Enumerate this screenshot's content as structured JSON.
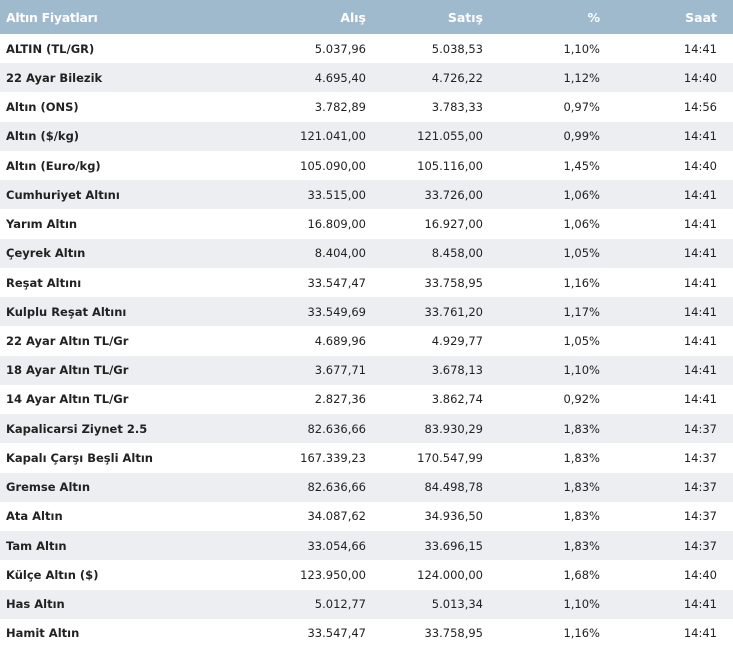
{
  "table": {
    "header": [
      "Altın Fiyatları",
      "Alış",
      "Satış",
      "%",
      "Saat"
    ],
    "rows": [
      [
        "ALTIN (TL/GR)",
        "5.037,96",
        "5.038,53",
        "1,10%",
        "14:41"
      ],
      [
        "22 Ayar Bilezik",
        "4.695,40",
        "4.726,22",
        "1,12%",
        "14:40"
      ],
      [
        "Altın (ONS)",
        "3.782,89",
        "3.783,33",
        "0,97%",
        "14:56"
      ],
      [
        "Altın ($/kg)",
        "121.041,00",
        "121.055,00",
        "0,99%",
        "14:41"
      ],
      [
        "Altın (Euro/kg)",
        "105.090,00",
        "105.116,00",
        "1,45%",
        "14:40"
      ],
      [
        "Cumhuriyet Altını",
        "33.515,00",
        "33.726,00",
        "1,06%",
        "14:41"
      ],
      [
        "Yarım Altın",
        "16.809,00",
        "16.927,00",
        "1,06%",
        "14:41"
      ],
      [
        "Çeyrek Altın",
        "8.404,00",
        "8.458,00",
        "1,05%",
        "14:41"
      ],
      [
        "Reşat Altını",
        "33.547,47",
        "33.758,95",
        "1,16%",
        "14:41"
      ],
      [
        "Kulplu Reşat Altını",
        "33.549,69",
        "33.761,20",
        "1,17%",
        "14:41"
      ],
      [
        "22 Ayar Altın TL/Gr",
        "4.689,96",
        "4.929,77",
        "1,05%",
        "14:41"
      ],
      [
        "18 Ayar Altın TL/Gr",
        "3.677,71",
        "3.678,13",
        "1,10%",
        "14:41"
      ],
      [
        "14 Ayar Altın TL/Gr",
        "2.827,36",
        "3.862,74",
        "0,92%",
        "14:41"
      ],
      [
        "Kapalicarsi Ziynet 2.5",
        "82.636,66",
        "83.930,29",
        "1,83%",
        "14:37"
      ],
      [
        "Kapalı Çarşı Beşli Altın",
        "167.339,23",
        "170.547,99",
        "1,83%",
        "14:37"
      ],
      [
        "Gremse Altın",
        "82.636,66",
        "84.498,78",
        "1,83%",
        "14:37"
      ],
      [
        "Ata Altın",
        "34.087,62",
        "34.936,50",
        "1,83%",
        "14:37"
      ],
      [
        "Tam Altın",
        "33.054,66",
        "33.696,15",
        "1,83%",
        "14:37"
      ],
      [
        "Külçe Altın ($)",
        "123.950,00",
        "124.000,00",
        "1,68%",
        "14:40"
      ],
      [
        "Has Altın",
        "5.012,77",
        "5.013,34",
        "1,10%",
        "14:41"
      ],
      [
        "Hamit Altın",
        "33.547,47",
        "33.758,95",
        "1,16%",
        "14:41"
      ]
    ]
  }
}
